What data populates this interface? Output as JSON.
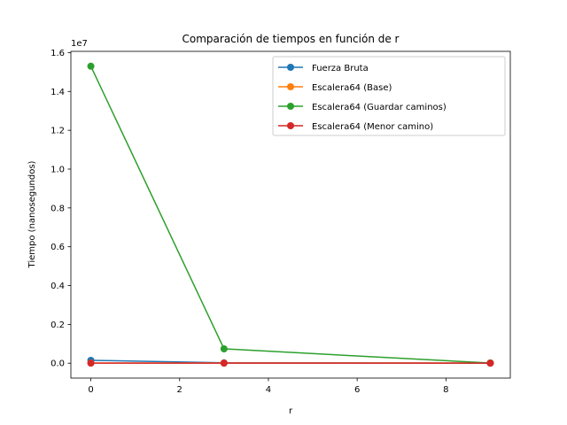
{
  "chart_data": {
    "type": "line",
    "title": "Comparación de tiempos en función de r",
    "xlabel": "r",
    "ylabel": "Tiempo (nanosegundos)",
    "y_offset_label": "1e7",
    "xlim": [
      -0.45,
      9.45
    ],
    "ylim": [
      -765000,
      16065000
    ],
    "xticks": [
      0,
      2,
      4,
      6,
      8
    ],
    "xtick_labels": [
      "0",
      "2",
      "4",
      "6",
      "8"
    ],
    "yticks": [
      0,
      2000000,
      4000000,
      6000000,
      8000000,
      10000000,
      12000000,
      14000000,
      16000000
    ],
    "ytick_labels": [
      "0.0",
      "0.2",
      "0.4",
      "0.6",
      "0.8",
      "1.0",
      "1.2",
      "1.4",
      "1.6"
    ],
    "legend_position": "top-right",
    "grid": false,
    "x": [
      0,
      3,
      9
    ],
    "series": [
      {
        "name": "Fuerza Bruta",
        "color": "#1f77b4",
        "values": [
          150000,
          20000,
          5000
        ]
      },
      {
        "name": "Escalera64 (Base)",
        "color": "#ff7f0e",
        "values": [
          10000,
          10000,
          10000
        ]
      },
      {
        "name": "Escalera64 (Guardar caminos)",
        "color": "#2ca02c",
        "values": [
          15300000,
          740000,
          10000
        ]
      },
      {
        "name": "Escalera64 (Menor camino)",
        "color": "#d62728",
        "values": [
          5000,
          5000,
          5000
        ]
      }
    ]
  }
}
